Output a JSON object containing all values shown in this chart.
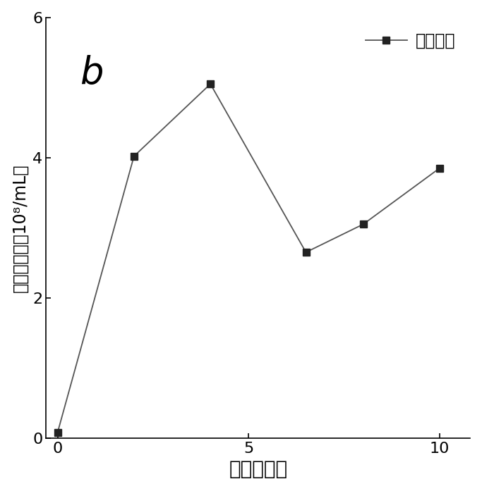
{
  "x": [
    0,
    2,
    4,
    6.5,
    8,
    10
  ],
  "y": [
    0.08,
    4.02,
    5.05,
    2.65,
    3.05,
    3.85
  ],
  "xlim": [
    -0.3,
    10.8
  ],
  "ylim": [
    0,
    6
  ],
  "xticks": [
    0,
    5,
    10
  ],
  "yticks": [
    0,
    2,
    4,
    6
  ],
  "xlabel": "时间（天）",
  "ylabel": "细胞浓度（＊10⁸/mL）",
  "label_b": "b",
  "legend_label": "细胞浓度",
  "line_color": "#555555",
  "marker": "s",
  "marker_color": "#222222",
  "marker_size": 7,
  "line_width": 1.3,
  "background_color": "#ffffff",
  "xlabel_fontsize": 20,
  "ylabel_fontsize": 17,
  "tick_fontsize": 16,
  "legend_fontsize": 17,
  "label_b_fontsize": 38
}
